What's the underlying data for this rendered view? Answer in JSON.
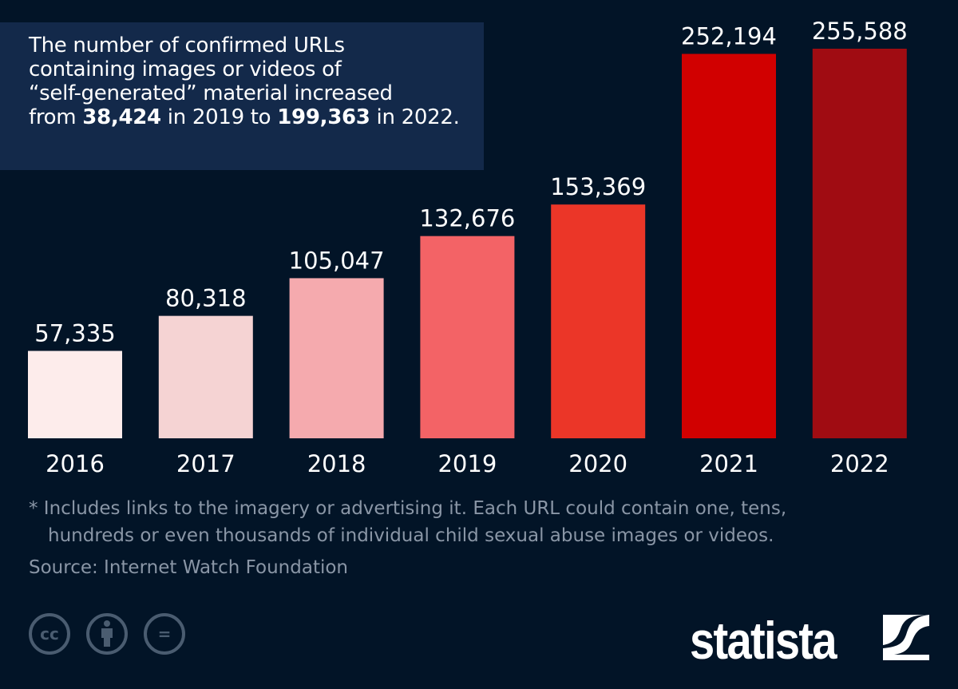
{
  "callout": {
    "line1": "The number of confirmed URLs",
    "line2": "containing images or videos of",
    "line3": "“self-generated” material increased",
    "line4_a": "from ",
    "line4_b": "38,424",
    "line4_c": " in 2019 to ",
    "line4_d": "199,363",
    "line4_e": " in 2022."
  },
  "chart_data": {
    "type": "bar",
    "categories": [
      "2016",
      "2017",
      "2018",
      "2019",
      "2020",
      "2021",
      "2022"
    ],
    "values": [
      57335,
      80318,
      105047,
      132676,
      153369,
      252194,
      255588
    ],
    "labels": [
      "57,335",
      "80,318",
      "105,047",
      "132,676",
      "153,369",
      "252,194",
      "255,588"
    ],
    "colors": [
      "#fdeceb",
      "#f5d3d3",
      "#f5aaae",
      "#f36366",
      "#eb3628",
      "#d10000",
      "#a00c12"
    ],
    "ylim": [
      0,
      260000
    ],
    "grid": false
  },
  "footnote": {
    "line1": "* Includes links to the imagery or advertising it. Each URL could contain one, tens,",
    "line2": "hundreds or even thousands of individual child sexual abuse images or videos."
  },
  "source": "Source: Internet Watch Foundation",
  "license_icons": [
    "cc-icon",
    "attribution-icon",
    "no-derivatives-icon"
  ],
  "license_text": {
    "cc": "cc",
    "eq": "="
  },
  "logo": "statista"
}
